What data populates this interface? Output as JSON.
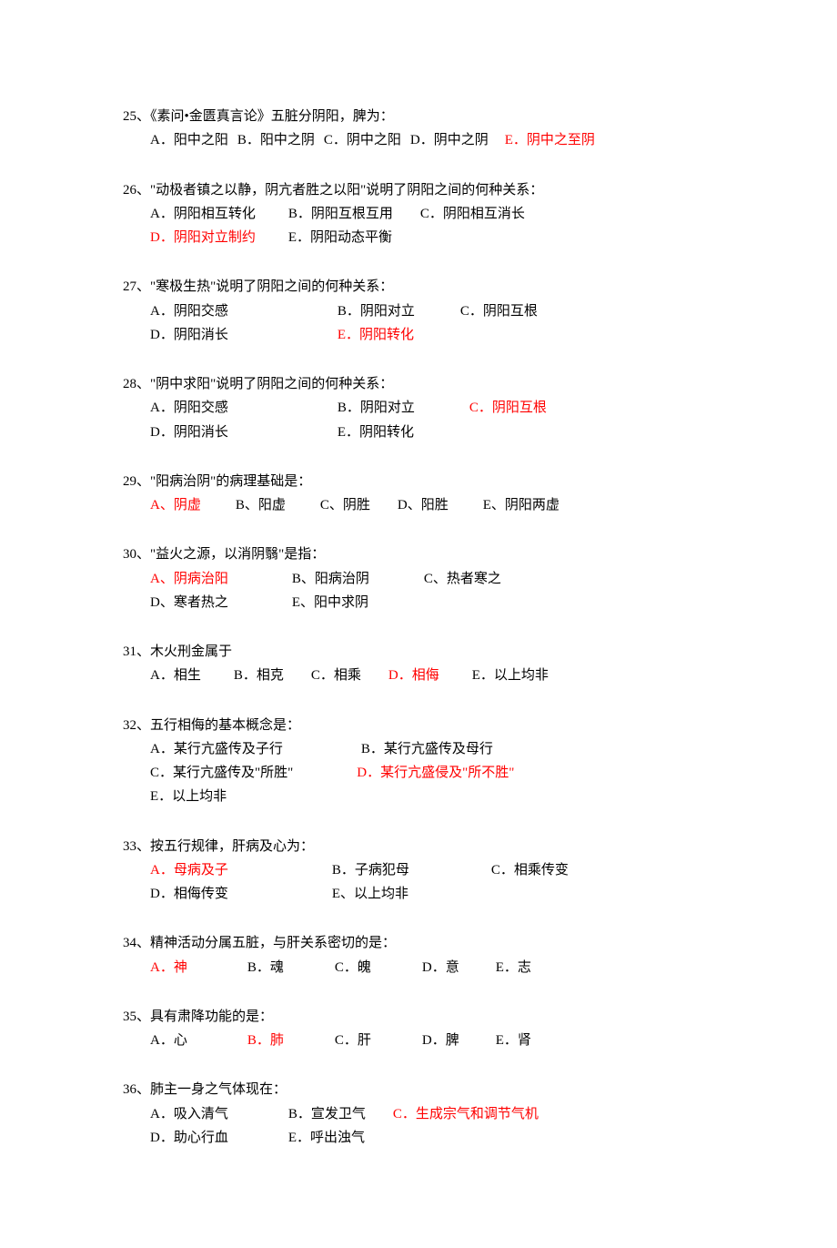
{
  "questions": [
    {
      "num": "25",
      "stem": "《素问•金匮真言论》五脏分阴阳，脾为：",
      "options": [
        {
          "label": "A．阳中之阳",
          "red": false,
          "gap": 0
        },
        {
          "label": "B．阳中之阴",
          "red": false,
          "gap": 10
        },
        {
          "label": "C．阴中之阳",
          "red": false,
          "gap": 10
        },
        {
          "label": "D．阴中之阴",
          "red": false,
          "gap": 10
        },
        {
          "label": "E．阴中之至阴",
          "red": true,
          "gap": 18
        }
      ],
      "layout": "inline"
    },
    {
      "num": "26",
      "stem": "\"动极者镇之以静，阴亢者胜之以阳\"说明了阴阳之间的何种关系：",
      "options": [
        {
          "label": "A．阴阳相互转化",
          "red": false,
          "gap": 0
        },
        {
          "label": "B．阴阳互根互用",
          "red": false,
          "gap": 36
        },
        {
          "label": "C．阴阳相互消长",
          "red": false,
          "gap": 30
        },
        {
          "label": "D．阴阳对立制约",
          "red": true,
          "gap": 0,
          "br": true
        },
        {
          "label": "E．阴阳动态平衡",
          "red": false,
          "gap": 36
        }
      ],
      "layout": "inline"
    },
    {
      "num": "27",
      "stem": "\"寒极生热\"说明了阴阳之间的何种关系：",
      "options": [
        {
          "label": "A．阴阳交感",
          "red": false,
          "gap": 0
        },
        {
          "label": "B．阴阳对立",
          "red": false,
          "gap": 120
        },
        {
          "label": "C．阴阳互根",
          "red": false,
          "gap": 50
        },
        {
          "label": "D．阴阳消长",
          "red": false,
          "gap": 0,
          "br": true
        },
        {
          "label": "E．阴阳转化",
          "red": true,
          "gap": 120
        }
      ],
      "layout": "inline"
    },
    {
      "num": "28",
      "stem": "\"阴中求阳\"说明了阴阳之间的何种关系：",
      "options": [
        {
          "label": "A．阴阳交感",
          "red": false,
          "gap": 0
        },
        {
          "label": "B．阴阳对立",
          "red": false,
          "gap": 120
        },
        {
          "label": "C．阴阳互根",
          "red": true,
          "gap": 60
        },
        {
          "label": "D．阴阳消长",
          "red": false,
          "gap": 0,
          "br": true
        },
        {
          "label": "E．阴阳转化",
          "red": false,
          "gap": 120
        }
      ],
      "layout": "inline"
    },
    {
      "num": "29",
      "stem": "\"阳病治阴\"的病理基础是：",
      "options": [
        {
          "label": "A、阴虚",
          "red": true,
          "gap": 0
        },
        {
          "label": "B、阳虚",
          "red": false,
          "gap": 38
        },
        {
          "label": "C、阴胜",
          "red": false,
          "gap": 38
        },
        {
          "label": "D、阳胜",
          "red": false,
          "gap": 30
        },
        {
          "label": "E、阴阳两虚",
          "red": false,
          "gap": 38
        }
      ],
      "layout": "inline"
    },
    {
      "num": "30",
      "stem": "\"益火之源，以消阴翳\"是指：",
      "options": [
        {
          "label": "A、阴病治阳",
          "red": true,
          "gap": 0
        },
        {
          "label": "B、阳病治阴",
          "red": false,
          "gap": 70
        },
        {
          "label": "C、热者寒之",
          "red": false,
          "gap": 60
        },
        {
          "label": "D、寒者热之",
          "red": false,
          "gap": 0,
          "br": true
        },
        {
          "label": "E、阳中求阴",
          "red": false,
          "gap": 70
        }
      ],
      "layout": "inline"
    },
    {
      "num": "31",
      "stem": "木火刑金属于",
      "options": [
        {
          "label": "A．相生",
          "red": false,
          "gap": 0
        },
        {
          "label": "B．相克",
          "red": false,
          "gap": 36
        },
        {
          "label": "C．相乘",
          "red": false,
          "gap": 30
        },
        {
          "label": "D．相侮",
          "red": true,
          "gap": 30
        },
        {
          "label": "E．以上均非",
          "red": false,
          "gap": 36
        }
      ],
      "layout": "inline"
    },
    {
      "num": "32",
      "stem": "五行相侮的基本概念是：",
      "options": [
        {
          "label": "A．某行亢盛传及子行",
          "red": false,
          "gap": 0
        },
        {
          "label": "B．某行亢盛传及母行",
          "red": false,
          "gap": 86
        },
        {
          "label": "C．某行亢盛传及\"所胜\"",
          "red": false,
          "gap": 0,
          "br": true
        },
        {
          "label": "D．某行亢盛侵及\"所不胜\"",
          "red": true,
          "gap": 70
        },
        {
          "label": "E．以上均非",
          "red": false,
          "gap": 0,
          "br": true
        }
      ],
      "layout": "inline"
    },
    {
      "num": "33",
      "stem": "按五行规律，肝病及心为：",
      "options": [
        {
          "label": "A．母病及子",
          "red": true,
          "gap": 0
        },
        {
          "label": "B．子病犯母",
          "red": false,
          "gap": 114
        },
        {
          "label": "C．相乘传变",
          "red": false,
          "gap": 90
        },
        {
          "label": "D．相侮传变",
          "red": false,
          "gap": 0,
          "br": true
        },
        {
          "label": "E、以上均非",
          "red": false,
          "gap": 114
        }
      ],
      "layout": "inline"
    },
    {
      "num": "34",
      "stem": "精神活动分属五脏，与肝关系密切的是：",
      "options": [
        {
          "label": "A．神",
          "red": true,
          "gap": 0
        },
        {
          "label": "B．魂",
          "red": false,
          "gap": 66
        },
        {
          "label": "C．魄",
          "red": false,
          "gap": 56
        },
        {
          "label": "D．意",
          "red": false,
          "gap": 56
        },
        {
          "label": "E．志",
          "red": false,
          "gap": 40
        }
      ],
      "layout": "inline"
    },
    {
      "num": "35",
      "stem": "具有肃降功能的是：",
      "options": [
        {
          "label": "A．心",
          "red": false,
          "gap": 0
        },
        {
          "label": "B．肺",
          "red": true,
          "gap": 66
        },
        {
          "label": "C．肝",
          "red": false,
          "gap": 56
        },
        {
          "label": "D．脾",
          "red": false,
          "gap": 56
        },
        {
          "label": "E．肾",
          "red": false,
          "gap": 40
        }
      ],
      "layout": "inline"
    },
    {
      "num": "36",
      "stem": "肺主一身之气体现在：",
      "options": [
        {
          "label": "A．吸入清气",
          "red": false,
          "gap": 0
        },
        {
          "label": "B．宣发卫气",
          "red": false,
          "gap": 66
        },
        {
          "label": "C．生成宗气和调节气机",
          "red": true,
          "gap": 30
        },
        {
          "label": "D．助心行血",
          "red": false,
          "gap": 0,
          "br": true
        },
        {
          "label": "E．呼出浊气",
          "red": false,
          "gap": 66
        }
      ],
      "layout": "inline"
    }
  ]
}
